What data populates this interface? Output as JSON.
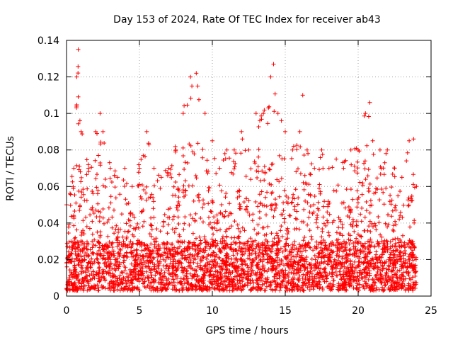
{
  "chart_data": {
    "type": "scatter",
    "title": "Day 153 of 2024, Rate Of TEC Index for receiver ab43",
    "xlabel": "GPS time / hours",
    "ylabel": "ROTI / TECUs",
    "xlim": [
      0,
      25
    ],
    "ylim": [
      0,
      0.14
    ],
    "xticks": [
      "0",
      "5",
      "10",
      "15",
      "20",
      "25"
    ],
    "yticks": [
      "0",
      "0.02",
      "0.04",
      "0.06",
      "0.08",
      "0.1",
      "0.12",
      "0.14"
    ],
    "grid": true,
    "marker": "plus",
    "color": "#ff0000",
    "envelope": {
      "x": [
        0.0,
        0.5,
        0.7,
        0.8,
        1.0,
        1.5,
        2.0,
        2.3,
        2.5,
        3.0,
        3.5,
        4.0,
        4.5,
        5.0,
        5.5,
        6.0,
        6.5,
        7.0,
        7.5,
        8.0,
        8.5,
        8.9,
        9.0,
        9.5,
        10.0,
        10.5,
        11.0,
        11.5,
        12.0,
        12.5,
        13.0,
        13.5,
        14.0,
        14.2,
        14.5,
        15.0,
        15.5,
        16.0,
        16.2,
        16.5,
        17.0,
        17.5,
        18.0,
        18.5,
        19.0,
        19.5,
        20.0,
        20.5,
        20.8,
        21.0,
        21.5,
        22.0,
        22.5,
        23.0,
        23.5,
        23.8,
        24.0
      ],
      "y": [
        0.05,
        0.07,
        0.12,
        0.135,
        0.09,
        0.07,
        0.09,
        0.1,
        0.09,
        0.07,
        0.065,
        0.07,
        0.06,
        0.07,
        0.09,
        0.07,
        0.065,
        0.07,
        0.08,
        0.1,
        0.12,
        0.122,
        0.115,
        0.1,
        0.085,
        0.07,
        0.08,
        0.08,
        0.09,
        0.08,
        0.1,
        0.1,
        0.12,
        0.127,
        0.1,
        0.09,
        0.08,
        0.09,
        0.11,
        0.08,
        0.07,
        0.08,
        0.07,
        0.075,
        0.07,
        0.08,
        0.08,
        0.1,
        0.106,
        0.085,
        0.08,
        0.08,
        0.07,
        0.065,
        0.085,
        0.086,
        0.06
      ]
    },
    "baseline": {
      "x": [
        0,
        24
      ],
      "y": [
        0.005,
        0.005
      ]
    },
    "density_band": {
      "y": [
        0.003,
        0.03
      ],
      "note": ""
    }
  }
}
